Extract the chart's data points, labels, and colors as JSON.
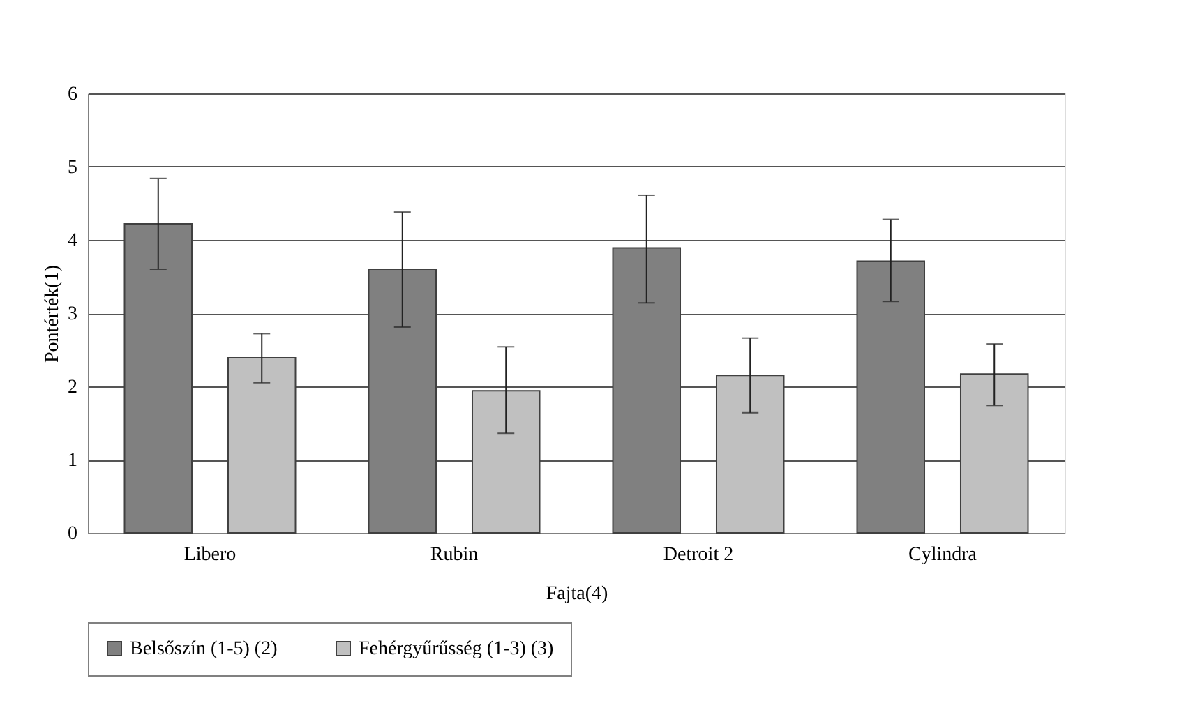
{
  "chart_data": {
    "type": "bar",
    "xlabel": "Fajta(4)",
    "ylabel": "Pontérték(1)",
    "categories": [
      "Libero",
      "Rubin",
      "Detroit 2",
      "Cylindra"
    ],
    "series": [
      {
        "name": "Belsőszín (1-5) (2)",
        "color": "#808080",
        "values": [
          4.22,
          3.6,
          3.89,
          3.71
        ],
        "errors": [
          [
            3.6,
            4.84
          ],
          [
            2.81,
            4.38
          ],
          [
            3.14,
            4.61
          ],
          [
            3.16,
            4.28
          ]
        ]
      },
      {
        "name": "Fehérgyűrűsség (1-3) (3)",
        "color": "#c0c0c0",
        "values": [
          2.39,
          1.94,
          2.15,
          2.17
        ],
        "errors": [
          [
            2.05,
            2.72
          ],
          [
            1.36,
            2.54
          ],
          [
            1.64,
            2.66
          ],
          [
            1.74,
            2.58
          ]
        ]
      }
    ],
    "ylim": [
      0,
      6
    ],
    "yticks": [
      0,
      1,
      2,
      3,
      4,
      5,
      6
    ],
    "grid": "y",
    "legend": "bottom"
  }
}
